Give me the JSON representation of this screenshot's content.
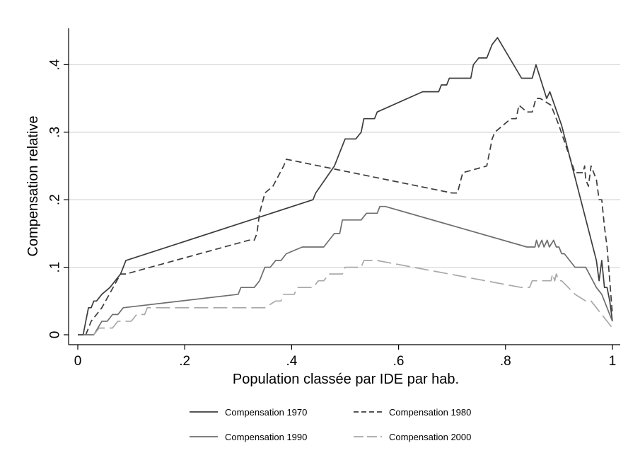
{
  "chart_data": {
    "type": "line",
    "xlabel": "Population classée par IDE par hab.",
    "ylabel": "Compensation relative",
    "xlim": [
      0,
      1
    ],
    "ylim": [
      0,
      0.44
    ],
    "x_ticks": [
      0,
      0.2,
      0.4,
      0.6,
      0.8,
      1
    ],
    "x_tick_labels": [
      "0",
      ".2",
      ".4",
      ".6",
      ".8",
      "1"
    ],
    "y_ticks": [
      0,
      0.1,
      0.2,
      0.3,
      0.4
    ],
    "y_tick_labels": [
      "0",
      ".1",
      ".2",
      ".3",
      ".4"
    ],
    "grid": "horizontal",
    "legend_position": "bottom",
    "series": [
      {
        "name": "Compensation 1970",
        "color": "#3c3c3c",
        "dash": "solid",
        "points": [
          [
            0,
            0
          ],
          [
            0.01,
            0
          ],
          [
            0.015,
            0.02
          ],
          [
            0.02,
            0.04
          ],
          [
            0.025,
            0.04
          ],
          [
            0.03,
            0.05
          ],
          [
            0.035,
            0.05
          ],
          [
            0.045,
            0.06
          ],
          [
            0.06,
            0.07
          ],
          [
            0.08,
            0.09
          ],
          [
            0.085,
            0.1
          ],
          [
            0.09,
            0.11
          ],
          [
            0.44,
            0.2
          ],
          [
            0.445,
            0.21
          ],
          [
            0.48,
            0.25
          ],
          [
            0.49,
            0.27
          ],
          [
            0.5,
            0.29
          ],
          [
            0.52,
            0.29
          ],
          [
            0.53,
            0.3
          ],
          [
            0.535,
            0.32
          ],
          [
            0.555,
            0.32
          ],
          [
            0.56,
            0.33
          ],
          [
            0.645,
            0.36
          ],
          [
            0.675,
            0.36
          ],
          [
            0.68,
            0.37
          ],
          [
            0.69,
            0.37
          ],
          [
            0.695,
            0.38
          ],
          [
            0.735,
            0.38
          ],
          [
            0.74,
            0.4
          ],
          [
            0.75,
            0.41
          ],
          [
            0.765,
            0.41
          ],
          [
            0.775,
            0.43
          ],
          [
            0.785,
            0.44
          ],
          [
            0.83,
            0.38
          ],
          [
            0.85,
            0.38
          ],
          [
            0.857,
            0.4
          ],
          [
            0.877,
            0.35
          ],
          [
            0.883,
            0.36
          ],
          [
            0.905,
            0.31
          ],
          [
            0.97,
            0.11
          ],
          [
            0.975,
            0.08
          ],
          [
            0.98,
            0.11
          ],
          [
            0.985,
            0.07
          ],
          [
            0.99,
            0.07
          ],
          [
            0.995,
            0.05
          ],
          [
            1,
            0.02
          ]
        ]
      },
      {
        "name": "Compensation 1980",
        "color": "#3c3c3c",
        "dash": "dashed",
        "points": [
          [
            0.015,
            0
          ],
          [
            0.02,
            0.01
          ],
          [
            0.025,
            0.02
          ],
          [
            0.035,
            0.03
          ],
          [
            0.045,
            0.04
          ],
          [
            0.08,
            0.09
          ],
          [
            0.09,
            0.09
          ],
          [
            0.32,
            0.14
          ],
          [
            0.33,
            0.14
          ],
          [
            0.335,
            0.15
          ],
          [
            0.34,
            0.18
          ],
          [
            0.35,
            0.21
          ],
          [
            0.365,
            0.22
          ],
          [
            0.385,
            0.25
          ],
          [
            0.39,
            0.26
          ],
          [
            0.7,
            0.21
          ],
          [
            0.71,
            0.21
          ],
          [
            0.72,
            0.24
          ],
          [
            0.765,
            0.25
          ],
          [
            0.775,
            0.29
          ],
          [
            0.78,
            0.3
          ],
          [
            0.81,
            0.32
          ],
          [
            0.82,
            0.32
          ],
          [
            0.825,
            0.34
          ],
          [
            0.84,
            0.33
          ],
          [
            0.85,
            0.33
          ],
          [
            0.857,
            0.35
          ],
          [
            0.865,
            0.35
          ],
          [
            0.885,
            0.34
          ],
          [
            0.9,
            0.31
          ],
          [
            0.93,
            0.24
          ],
          [
            0.945,
            0.24
          ],
          [
            0.948,
            0.25
          ],
          [
            0.95,
            0.23
          ],
          [
            0.955,
            0.22
          ],
          [
            0.96,
            0.25
          ],
          [
            0.97,
            0.23
          ],
          [
            0.975,
            0.2
          ],
          [
            0.98,
            0.2
          ],
          [
            0.985,
            0.16
          ],
          [
            0.99,
            0.13
          ],
          [
            0.995,
            0.08
          ],
          [
            1,
            0.03
          ]
        ]
      },
      {
        "name": "Compensation 1990",
        "color": "#6e6e6e",
        "dash": "solid",
        "points": [
          [
            0.01,
            0
          ],
          [
            0.03,
            0
          ],
          [
            0.045,
            0.02
          ],
          [
            0.055,
            0.02
          ],
          [
            0.065,
            0.03
          ],
          [
            0.075,
            0.03
          ],
          [
            0.085,
            0.04
          ],
          [
            0.3,
            0.06
          ],
          [
            0.305,
            0.07
          ],
          [
            0.33,
            0.07
          ],
          [
            0.34,
            0.08
          ],
          [
            0.35,
            0.1
          ],
          [
            0.36,
            0.1
          ],
          [
            0.37,
            0.11
          ],
          [
            0.38,
            0.11
          ],
          [
            0.39,
            0.12
          ],
          [
            0.42,
            0.13
          ],
          [
            0.46,
            0.13
          ],
          [
            0.47,
            0.14
          ],
          [
            0.48,
            0.15
          ],
          [
            0.49,
            0.15
          ],
          [
            0.495,
            0.17
          ],
          [
            0.53,
            0.17
          ],
          [
            0.54,
            0.18
          ],
          [
            0.56,
            0.18
          ],
          [
            0.565,
            0.19
          ],
          [
            0.575,
            0.19
          ],
          [
            0.84,
            0.13
          ],
          [
            0.855,
            0.13
          ],
          [
            0.858,
            0.14
          ],
          [
            0.862,
            0.13
          ],
          [
            0.868,
            0.14
          ],
          [
            0.872,
            0.13
          ],
          [
            0.878,
            0.14
          ],
          [
            0.882,
            0.13
          ],
          [
            0.89,
            0.14
          ],
          [
            0.895,
            0.13
          ],
          [
            0.9,
            0.13
          ],
          [
            0.905,
            0.12
          ],
          [
            0.91,
            0.12
          ],
          [
            0.93,
            0.1
          ],
          [
            0.95,
            0.1
          ],
          [
            0.97,
            0.07
          ],
          [
            0.98,
            0.06
          ],
          [
            0.99,
            0.04
          ],
          [
            0.995,
            0.03
          ],
          [
            1,
            0.02
          ]
        ]
      },
      {
        "name": "Compensation 2000",
        "color": "#a8a8a8",
        "dash": "longdash",
        "points": [
          [
            0.03,
            0
          ],
          [
            0.04,
            0.01
          ],
          [
            0.065,
            0.01
          ],
          [
            0.075,
            0.02
          ],
          [
            0.1,
            0.02
          ],
          [
            0.11,
            0.03
          ],
          [
            0.125,
            0.03
          ],
          [
            0.13,
            0.04
          ],
          [
            0.35,
            0.04
          ],
          [
            0.37,
            0.05
          ],
          [
            0.38,
            0.05
          ],
          [
            0.385,
            0.06
          ],
          [
            0.405,
            0.06
          ],
          [
            0.41,
            0.07
          ],
          [
            0.44,
            0.07
          ],
          [
            0.45,
            0.08
          ],
          [
            0.46,
            0.08
          ],
          [
            0.47,
            0.09
          ],
          [
            0.495,
            0.09
          ],
          [
            0.5,
            0.1
          ],
          [
            0.53,
            0.1
          ],
          [
            0.535,
            0.11
          ],
          [
            0.56,
            0.11
          ],
          [
            0.83,
            0.07
          ],
          [
            0.845,
            0.07
          ],
          [
            0.85,
            0.08
          ],
          [
            0.885,
            0.08
          ],
          [
            0.888,
            0.09
          ],
          [
            0.892,
            0.08
          ],
          [
            0.895,
            0.09
          ],
          [
            0.9,
            0.08
          ],
          [
            0.905,
            0.08
          ],
          [
            0.93,
            0.06
          ],
          [
            0.95,
            0.05
          ],
          [
            0.96,
            0.05
          ],
          [
            0.98,
            0.03
          ],
          [
            0.99,
            0.02
          ],
          [
            1,
            0.01
          ]
        ]
      }
    ]
  }
}
